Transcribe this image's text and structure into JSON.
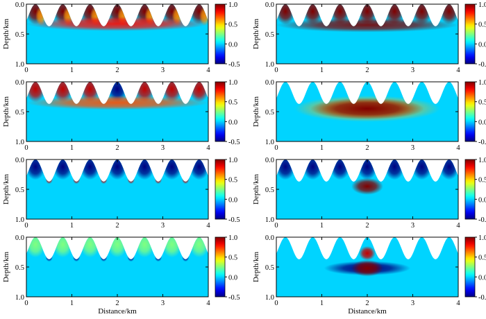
{
  "chart_data": {
    "type": "heatmap",
    "layout": "4 rows x 2 columns",
    "shared": {
      "xlabel": "Distance/km",
      "ylabel": "Depth/km",
      "xlim": [
        0,
        4
      ],
      "ylim": [
        0,
        1
      ],
      "xticks": [
        0,
        1,
        2,
        3,
        4
      ],
      "yticks": [
        0.0,
        0.5,
        1.0
      ],
      "colorbar_ticks": [
        1.0,
        0.5,
        0.0,
        -0.5
      ],
      "colorbar_range": [
        -0.5,
        1.0
      ],
      "colormap": "jet",
      "background_value": 0.0,
      "topography": {
        "peaks_x_km": [
          0.2,
          0.8,
          1.4,
          2.0,
          2.6,
          3.2,
          3.8
        ],
        "peak_depth_km": 0.0,
        "valley_depth_km": 0.37
      }
    },
    "panels": [
      {
        "row": 1,
        "col": 1,
        "description": "near-surface positive response concentrated under each hill",
        "hill_value": 1.0,
        "band_depth_km": 0.33,
        "band_value": 0.8
      },
      {
        "row": 1,
        "col": 2,
        "description": "strong positive response throughout hills and shallow band",
        "hill_value": 1.0,
        "band_depth_km": 0.35,
        "band_value": 1.0
      },
      {
        "row": 2,
        "col": 1,
        "description": "positive hills with negative response at the center hill",
        "hill_value": 0.9,
        "center_value": -0.5,
        "band_depth_km": 0.35,
        "band_value": 0.7
      },
      {
        "row": 2,
        "col": 2,
        "description": "broad positive anomaly centred at 2 km beneath topography",
        "anomaly_center_km": [
          2.0,
          0.45
        ],
        "anomaly_value": 1.0,
        "center_hill_value": -0.5
      },
      {
        "row": 3,
        "col": 1,
        "description": "mostly negative response in hills with small positive spots near 2 km",
        "hill_value": -0.5,
        "spot_value": 0.9
      },
      {
        "row": 3,
        "col": 2,
        "description": "negative hills with compact positive anomaly at 2 km",
        "hill_value": -0.5,
        "anomaly_center_km": [
          2.0,
          0.45
        ],
        "anomaly_value": 1.0
      },
      {
        "row": 4,
        "col": 1,
        "description": "weak mixed response with negative spots beneath valleys",
        "hill_value": 0.25,
        "spot_value": -0.5
      },
      {
        "row": 4,
        "col": 2,
        "description": "negative ring around compact positive anomaly at 2 km",
        "ring_value": -0.5,
        "anomaly_center_km": [
          2.0,
          0.52
        ],
        "anomaly_value": 1.0
      }
    ]
  }
}
